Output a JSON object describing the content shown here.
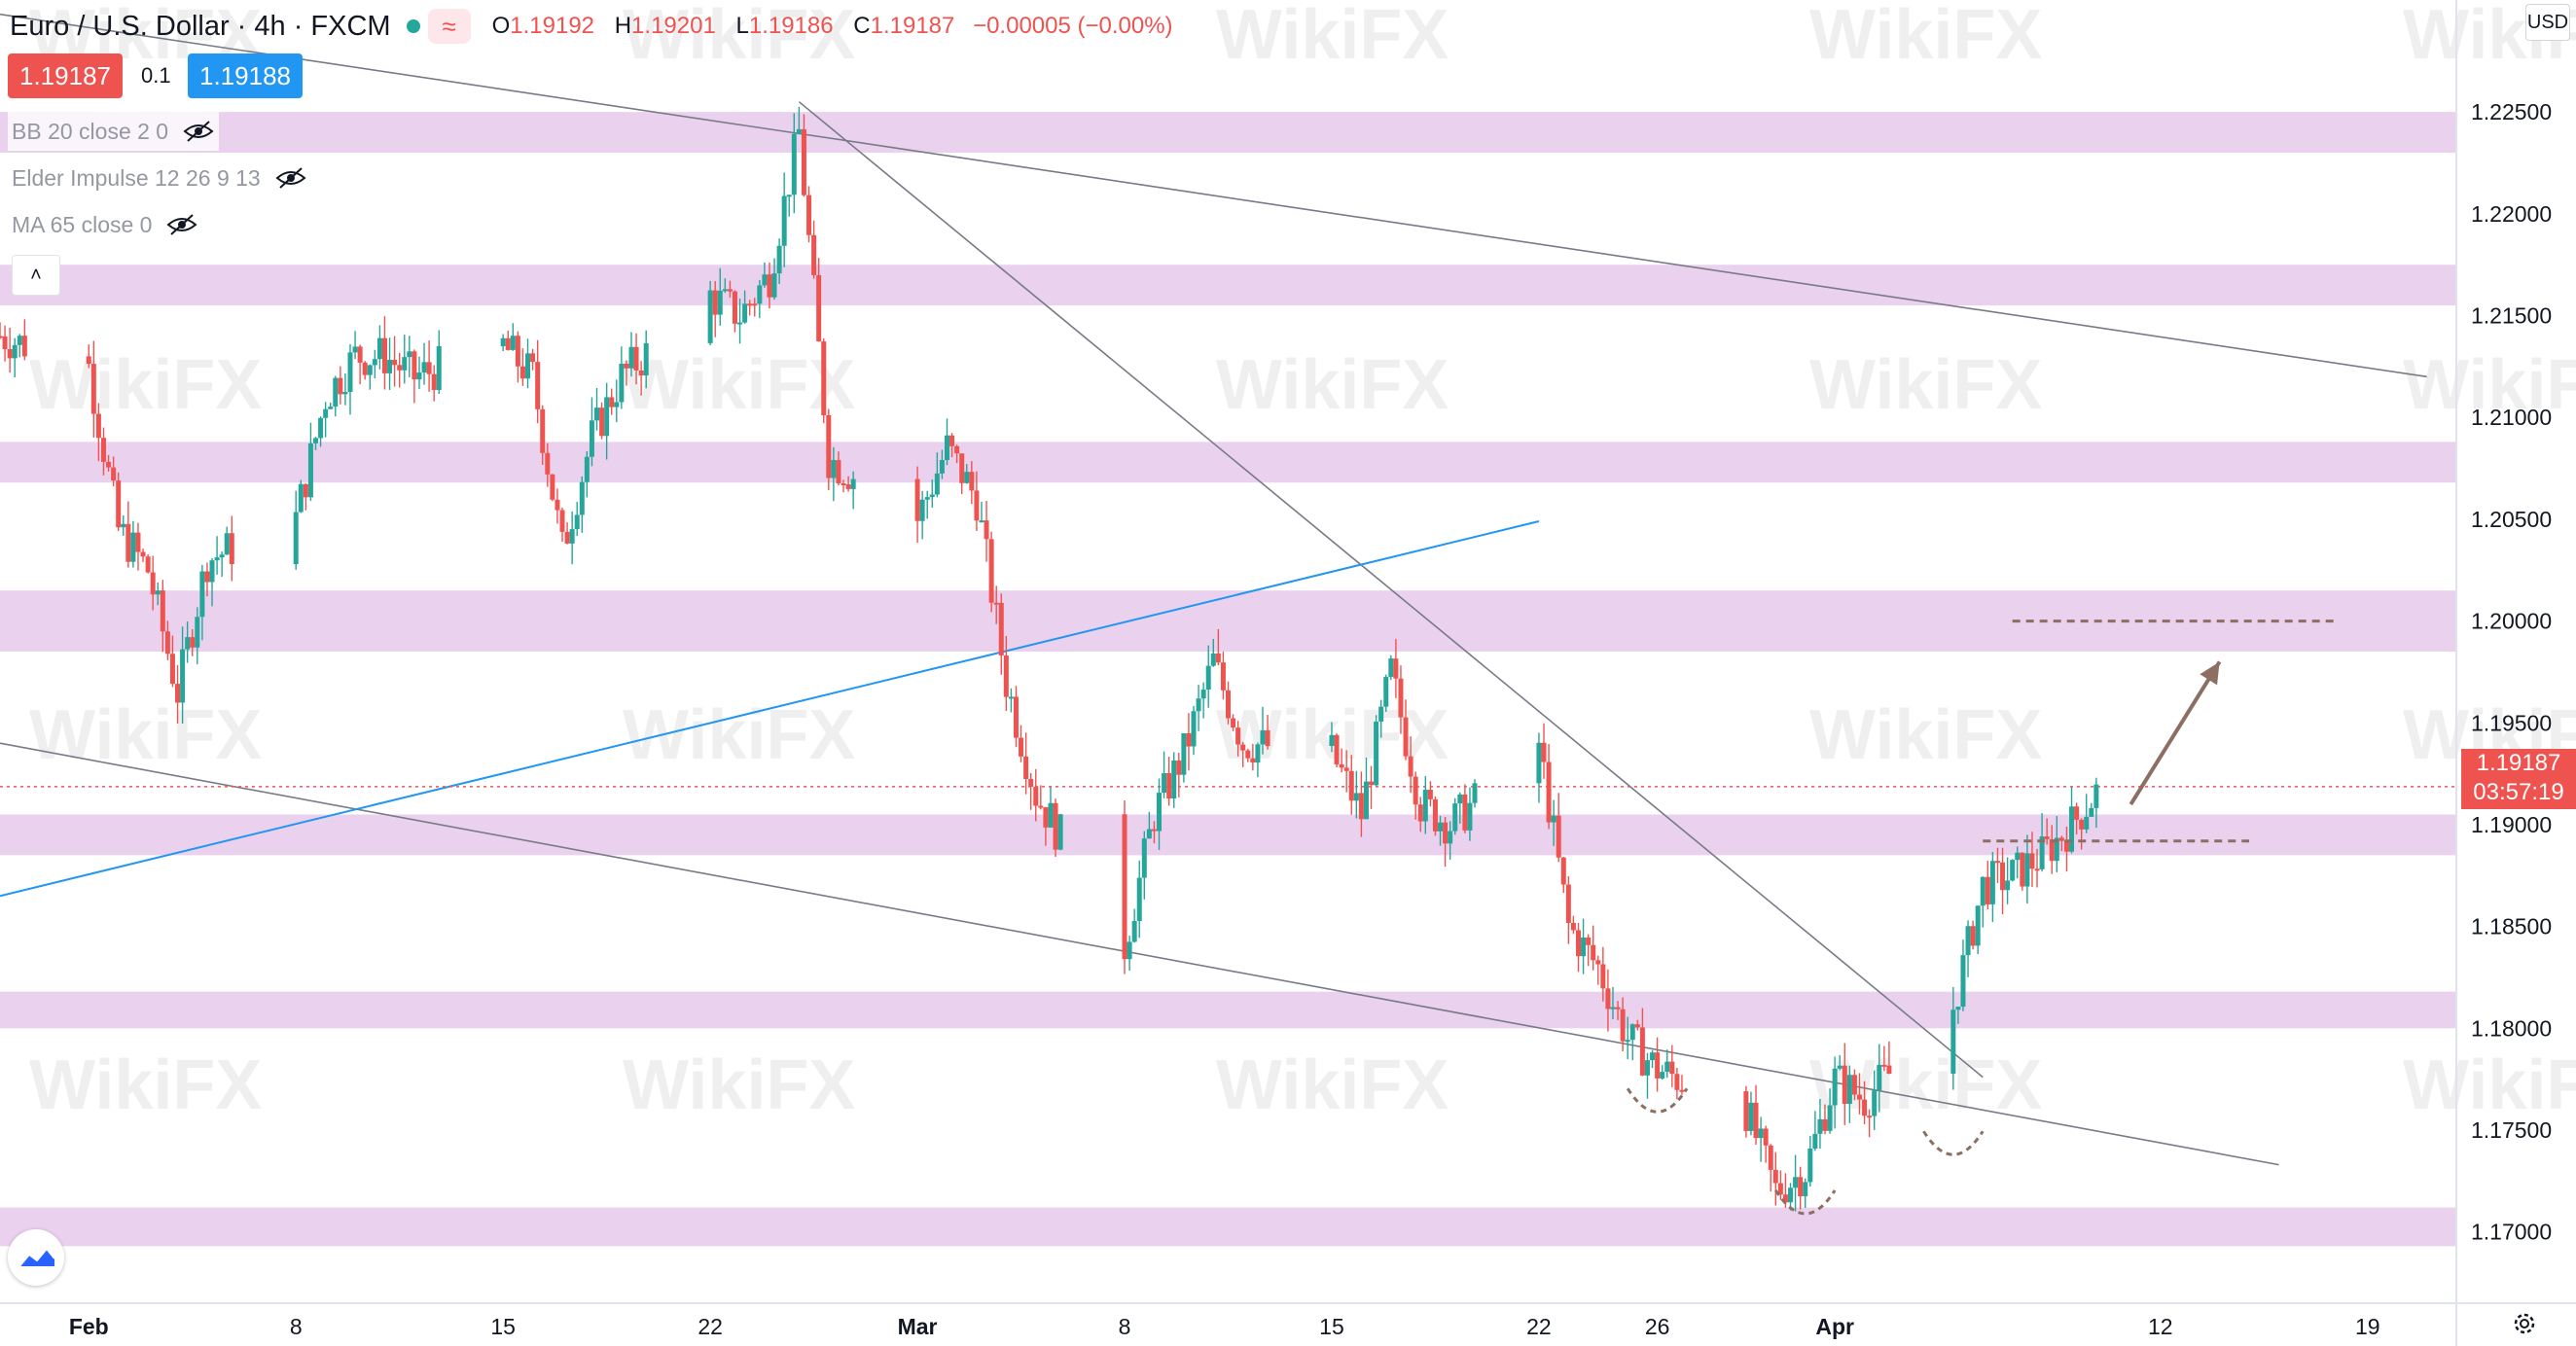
{
  "header": {
    "symbol_title": "Euro / U.S. Dollar · 4h · FXCM",
    "ohlc": {
      "o_label": "O",
      "o_value": "1.19192",
      "h_label": "H",
      "h_value": "1.19201",
      "l_label": "L",
      "l_value": "1.19186",
      "c_label": "C",
      "c_value": "1.19187",
      "change": "−0.00005 (−0.00%)"
    },
    "replay_icon": "≈"
  },
  "trade": {
    "sell_price": "1.19187",
    "spread": "0.1",
    "buy_price": "1.19188"
  },
  "indicators": [
    {
      "label": "BB 20 close 2 0",
      "icon": "eye-hidden-icon"
    },
    {
      "label": "Elder Impulse 12 26 9 13",
      "icon": "eye-hidden-icon"
    },
    {
      "label": "MA 65 close 0",
      "icon": "eye-hidden-icon"
    }
  ],
  "collapse_icon": "˄",
  "currency_button": "USD",
  "last_price": {
    "value": "1.19187",
    "countdown": "03:57:19"
  },
  "watermark_text": "WikiFX",
  "colors": {
    "up": "#26a69a",
    "down": "#ef5350",
    "zone": "#e1bee7",
    "trendline": "#787b86",
    "blue_line": "#2196f3",
    "target": "#8d6e63",
    "accent": "#2196f3"
  },
  "chart_data": {
    "type": "candlestick",
    "timeframe": "4h",
    "ylim": [
      1.1665,
      1.2305
    ],
    "xlim": [
      "2021-01-29",
      "2021-04-22"
    ],
    "y_ticks": [
      "1.17000",
      "1.17500",
      "1.18000",
      "1.18500",
      "1.19000",
      "1.19500",
      "1.20000",
      "1.20500",
      "1.21000",
      "1.21500",
      "1.22000",
      "1.22500"
    ],
    "x_ticks": [
      {
        "date": "2021-02-01",
        "label": "Feb"
      },
      {
        "date": "2021-02-08",
        "label": "8"
      },
      {
        "date": "2021-02-15",
        "label": "15"
      },
      {
        "date": "2021-02-22",
        "label": "22"
      },
      {
        "date": "2021-03-01",
        "label": "Mar"
      },
      {
        "date": "2021-03-08",
        "label": "8"
      },
      {
        "date": "2021-03-15",
        "label": "15"
      },
      {
        "date": "2021-03-22",
        "label": "22"
      },
      {
        "date": "2021-03-26",
        "label": "26"
      },
      {
        "date": "2021-04-01",
        "label": "Apr"
      },
      {
        "date": "2021-04-12",
        "label": "12"
      },
      {
        "date": "2021-04-19",
        "label": "19"
      }
    ],
    "path": [
      [
        "2021-01-29",
        1.214
      ],
      [
        "2021-02-01",
        1.2125
      ],
      [
        "2021-02-02",
        1.2045
      ],
      [
        "2021-02-03",
        1.2025
      ],
      [
        "2021-02-04",
        1.1965
      ],
      [
        "2021-02-05",
        1.203
      ],
      [
        "2021-02-08",
        1.205
      ],
      [
        "2021-02-09",
        1.211
      ],
      [
        "2021-02-10",
        1.213
      ],
      [
        "2021-02-11",
        1.213
      ],
      [
        "2021-02-12",
        1.212
      ],
      [
        "2021-02-15",
        1.2135
      ],
      [
        "2021-02-16",
        1.212
      ],
      [
        "2021-02-17",
        1.2035
      ],
      [
        "2021-02-18",
        1.209
      ],
      [
        "2021-02-19",
        1.212
      ],
      [
        "2021-02-22",
        1.216
      ],
      [
        "2021-02-23",
        1.215
      ],
      [
        "2021-02-24",
        1.217
      ],
      [
        "2021-02-25",
        1.224
      ],
      [
        "2021-02-26",
        1.208
      ],
      [
        "2021-03-01",
        1.205
      ],
      [
        "2021-03-02",
        1.2085
      ],
      [
        "2021-03-03",
        1.206
      ],
      [
        "2021-03-04",
        1.197
      ],
      [
        "2021-03-05",
        1.1915
      ],
      [
        "2021-03-08",
        1.184
      ],
      [
        "2021-03-09",
        1.1905
      ],
      [
        "2021-03-10",
        1.1935
      ],
      [
        "2021-03-11",
        1.198
      ],
      [
        "2021-03-12",
        1.194
      ],
      [
        "2021-03-15",
        1.1935
      ],
      [
        "2021-03-16",
        1.1905
      ],
      [
        "2021-03-17",
        1.1975
      ],
      [
        "2021-03-18",
        1.191
      ],
      [
        "2021-03-19",
        1.19
      ],
      [
        "2021-03-22",
        1.194
      ],
      [
        "2021-03-23",
        1.185
      ],
      [
        "2021-03-24",
        1.183
      ],
      [
        "2021-03-25",
        1.1795
      ],
      [
        "2021-03-26",
        1.178
      ],
      [
        "2021-03-29",
        1.176
      ],
      [
        "2021-03-30",
        1.172
      ],
      [
        "2021-03-31",
        1.173
      ],
      [
        "2021-04-01",
        1.1775
      ],
      [
        "2021-04-02",
        1.1765
      ],
      [
        "2021-04-05",
        1.181
      ],
      [
        "2021-04-06",
        1.187
      ],
      [
        "2021-04-07",
        1.1875
      ],
      [
        "2021-04-08",
        1.1885
      ],
      [
        "2021-04-09",
        1.19
      ],
      [
        "2021-04-10",
        1.1919
      ]
    ],
    "horizontal_zones": [
      [
        1.223,
        1.225
      ],
      [
        1.2155,
        1.2175
      ],
      [
        1.2068,
        1.2088
      ],
      [
        1.1985,
        1.2015
      ],
      [
        1.1885,
        1.1905
      ],
      [
        1.18,
        1.1818
      ],
      [
        1.1693,
        1.1712
      ]
    ],
    "trendlines": [
      {
        "from": [
          "2021-01-29",
          1.2298
        ],
        "to": [
          "2021-04-21",
          1.212
        ]
      },
      {
        "from": [
          "2021-01-29",
          1.194
        ],
        "to": [
          "2021-04-16",
          1.1733
        ]
      },
      {
        "from": [
          "2021-02-25",
          1.2255
        ],
        "to": [
          "2021-04-06",
          1.1776
        ]
      },
      {
        "from": [
          "2021-01-29",
          1.1865
        ],
        "to": [
          "2021-03-22",
          1.2049
        ]
      }
    ],
    "target_levels": [
      {
        "from": "2021-04-07",
        "to": "2021-04-18",
        "price": 1.2
      },
      {
        "from": "2021-04-06",
        "to": "2021-04-15",
        "price": 1.1892
      }
    ],
    "projection_arrow": {
      "from": [
        "2021-04-11",
        1.191
      ],
      "to": [
        "2021-04-14",
        1.198
      ]
    },
    "pattern_arcs": [
      {
        "from": "2021-03-25",
        "to": "2021-03-27",
        "low": 1.1758
      },
      {
        "from": "2021-03-30",
        "to": "2021-04-01",
        "low": 1.1708
      },
      {
        "from": "2021-04-04",
        "to": "2021-04-06",
        "low": 1.1737
      }
    ],
    "last_price_line": 1.19187
  }
}
